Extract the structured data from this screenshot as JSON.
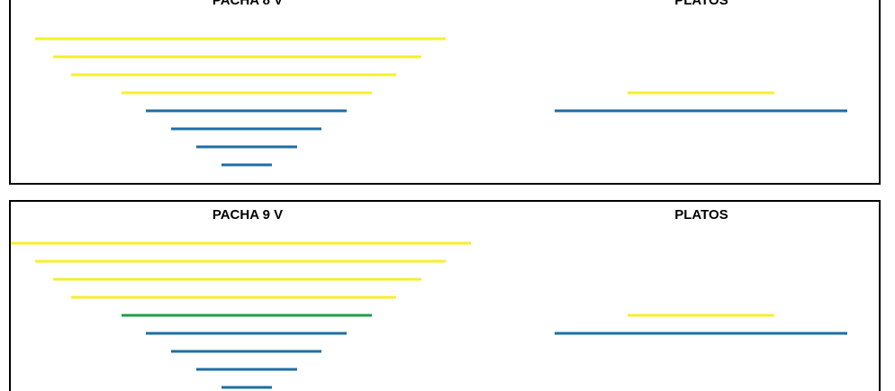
{
  "panels": [
    {
      "title": "PACHA 8 V",
      "side_title": "PLATOS"
    },
    {
      "title": "PACHA 9 V",
      "side_title": "PLATOS"
    }
  ]
}
